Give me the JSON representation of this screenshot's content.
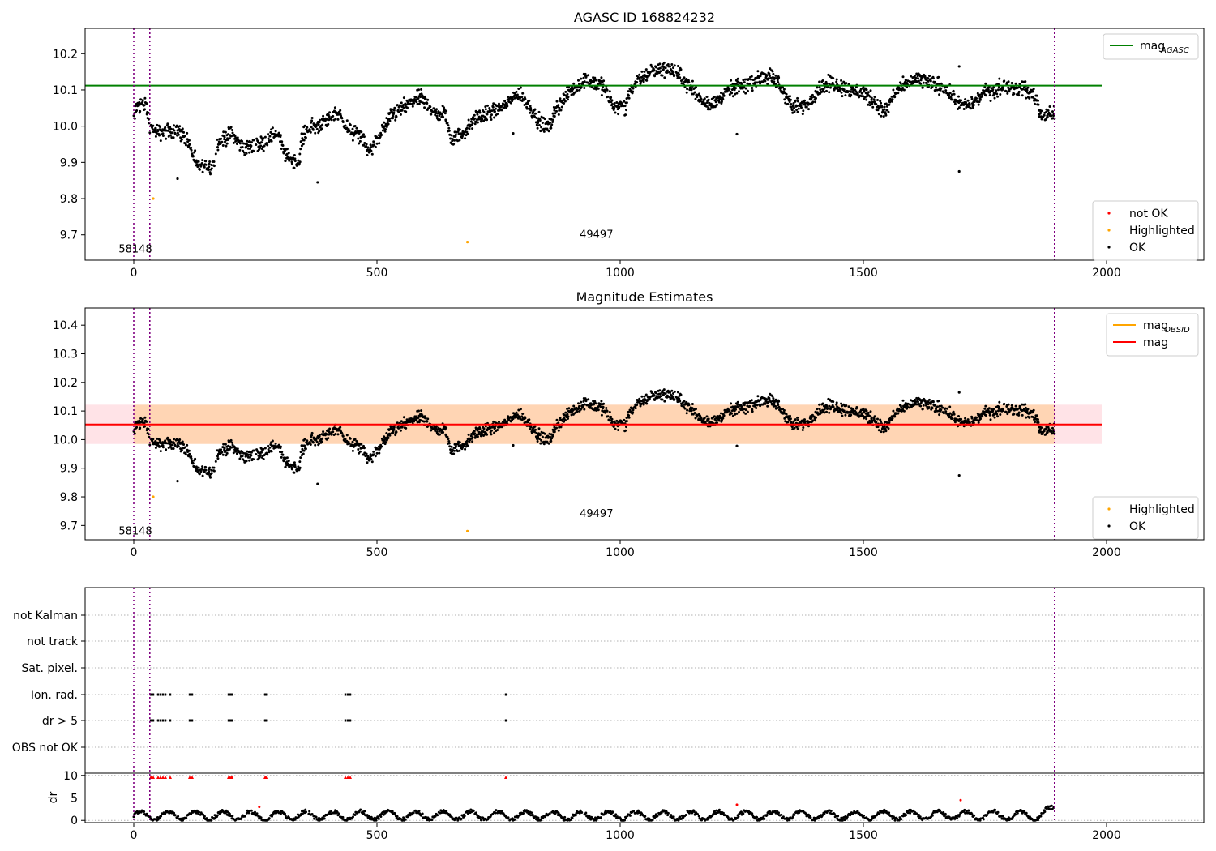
{
  "chart_data": [
    {
      "type": "scatter",
      "title": "AGASC ID 168824232",
      "xlim": [
        -100,
        2200
      ],
      "ylim": [
        9.63,
        10.27
      ],
      "xticks": [
        0,
        500,
        1000,
        1500,
        2000
      ],
      "yticks": [
        9.7,
        9.8,
        9.9,
        10.0,
        10.1,
        10.2
      ],
      "vlines": [
        0,
        33,
        1893
      ],
      "hline": {
        "name": "mag_AGASC",
        "value": 10.112,
        "color": "#008000",
        "x_end": 1990
      },
      "annotations": [
        {
          "text": "58148",
          "x": 15,
          "y": 9.66
        },
        {
          "text": "49497",
          "x": 963,
          "y": 9.7
        }
      ],
      "legend_upper": [
        {
          "label": "mag",
          "sub": "AGASC",
          "color": "#008000"
        }
      ],
      "legend_lower": [
        {
          "label": "not OK",
          "color": "#ff0000"
        },
        {
          "label": "Highlighted",
          "color": "#ffa500"
        },
        {
          "label": "OK",
          "color": "#000000"
        }
      ],
      "highlighted": [
        [
          40,
          9.8
        ],
        [
          686,
          9.68
        ]
      ],
      "outliers_ok": [
        [
          90,
          9.855
        ],
        [
          378,
          9.845
        ],
        [
          1240,
          9.978
        ],
        [
          1697,
          10.165
        ],
        [
          1697,
          9.875
        ],
        [
          780,
          9.98
        ]
      ],
      "trend_knots": [
        [
          0,
          10.02
        ],
        [
          8,
          10.06
        ],
        [
          25,
          10.06
        ],
        [
          33,
          10.0
        ],
        [
          50,
          9.98
        ],
        [
          90,
          9.99
        ],
        [
          110,
          9.96
        ],
        [
          130,
          9.89
        ],
        [
          165,
          9.89
        ],
        [
          170,
          9.95
        ],
        [
          200,
          9.98
        ],
        [
          225,
          9.94
        ],
        [
          260,
          9.95
        ],
        [
          290,
          9.98
        ],
        [
          300,
          9.97
        ],
        [
          310,
          9.92
        ],
        [
          340,
          9.9
        ],
        [
          345,
          9.96
        ],
        [
          355,
          9.99
        ],
        [
          390,
          10.01
        ],
        [
          420,
          10.04
        ],
        [
          440,
          9.99
        ],
        [
          470,
          9.97
        ],
        [
          480,
          9.93
        ],
        [
          495,
          9.95
        ],
        [
          530,
          10.03
        ],
        [
          565,
          10.06
        ],
        [
          590,
          10.08
        ],
        [
          610,
          10.05
        ],
        [
          625,
          10.03
        ],
        [
          640,
          10.04
        ],
        [
          650,
          9.97
        ],
        [
          680,
          9.98
        ],
        [
          700,
          10.02
        ],
        [
          740,
          10.04
        ],
        [
          765,
          10.06
        ],
        [
          790,
          10.09
        ],
        [
          810,
          10.06
        ],
        [
          825,
          10.03
        ],
        [
          840,
          10.0
        ],
        [
          855,
          10.0
        ],
        [
          870,
          10.05
        ],
        [
          900,
          10.1
        ],
        [
          930,
          10.13
        ],
        [
          965,
          10.11
        ],
        [
          985,
          10.06
        ],
        [
          1010,
          10.05
        ],
        [
          1020,
          10.1
        ],
        [
          1060,
          10.15
        ],
        [
          1100,
          10.16
        ],
        [
          1130,
          10.13
        ],
        [
          1150,
          10.1
        ],
        [
          1160,
          10.08
        ],
        [
          1190,
          10.06
        ],
        [
          1225,
          10.1
        ],
        [
          1270,
          10.12
        ],
        [
          1300,
          10.14
        ],
        [
          1325,
          10.12
        ],
        [
          1355,
          10.05
        ],
        [
          1385,
          10.06
        ],
        [
          1405,
          10.1
        ],
        [
          1435,
          10.12
        ],
        [
          1470,
          10.1
        ],
        [
          1505,
          10.09
        ],
        [
          1525,
          10.06
        ],
        [
          1545,
          10.04
        ],
        [
          1570,
          10.1
        ],
        [
          1610,
          10.13
        ],
        [
          1660,
          10.11
        ],
        [
          1685,
          10.08
        ],
        [
          1700,
          10.06
        ],
        [
          1725,
          10.06
        ],
        [
          1745,
          10.09
        ],
        [
          1790,
          10.11
        ],
        [
          1830,
          10.1
        ],
        [
          1855,
          10.08
        ],
        [
          1865,
          10.03
        ],
        [
          1893,
          10.03
        ]
      ],
      "noise": 0.018
    },
    {
      "type": "scatter",
      "title": "Magnitude Estimates",
      "xlim": [
        -100,
        2200
      ],
      "ylim": [
        9.65,
        10.46
      ],
      "xticks": [
        0,
        500,
        1000,
        1500,
        2000
      ],
      "yticks": [
        9.7,
        9.8,
        9.9,
        10.0,
        10.1,
        10.2,
        10.3,
        10.4
      ],
      "vlines": [
        0,
        33,
        1893
      ],
      "mag_line": {
        "name": "mag",
        "value": 10.053,
        "color": "#ff0000",
        "band": [
          9.985,
          10.122
        ],
        "x_start": -100,
        "x_end": 1990
      },
      "mag_obsid_segments": [
        {
          "x0": 0,
          "x1": 33,
          "band": [
            9.985,
            10.122
          ]
        },
        {
          "x0": 33,
          "x1": 1893,
          "band": [
            9.985,
            10.122
          ]
        }
      ],
      "annotations": [
        {
          "text": "58148",
          "x": 15,
          "y": 9.68
        },
        {
          "text": "49497",
          "x": 963,
          "y": 9.74
        }
      ],
      "legend_upper": [
        {
          "label": "mag",
          "sub": "OBSID",
          "color": "#ffa500"
        },
        {
          "label": "mag",
          "sub": "",
          "color": "#ff0000"
        }
      ],
      "legend_lower": [
        {
          "label": "Highlighted",
          "color": "#ffa500"
        },
        {
          "label": "OK",
          "color": "#000000"
        }
      ]
    },
    {
      "type": "scatter",
      "xlim": [
        -100,
        2200
      ],
      "xticks": [
        0,
        500,
        1000,
        1500,
        2000
      ],
      "vlines": [
        0,
        33,
        1893
      ],
      "flag_rows": [
        "not Kalman",
        "not track",
        "Sat. pixel.",
        "Ion. rad.",
        "dr > 5",
        "OBS not OK"
      ],
      "flag_events": {
        "Ion. rad.": [
          35,
          37,
          40,
          50,
          55,
          60,
          65,
          75,
          115,
          120,
          195,
          197,
          200,
          202,
          270,
          272,
          435,
          440,
          445,
          765
        ],
        "dr > 5": [
          35,
          37,
          40,
          50,
          55,
          60,
          65,
          75,
          115,
          120,
          195,
          197,
          200,
          202,
          270,
          272,
          435,
          440,
          445,
          765
        ]
      },
      "dr_ylabel": "dr",
      "dr_ylim": [
        -0.5,
        10.5
      ],
      "dr_yticks": [
        0,
        5,
        10
      ],
      "dr_red_capped": [
        35,
        37,
        40,
        50,
        55,
        60,
        65,
        75,
        115,
        120,
        195,
        197,
        200,
        202,
        270,
        272,
        435,
        440,
        445,
        765
      ],
      "dr_red_points": [
        [
          258,
          3.0
        ],
        [
          1240,
          3.5
        ],
        [
          1700,
          4.5
        ]
      ]
    }
  ]
}
